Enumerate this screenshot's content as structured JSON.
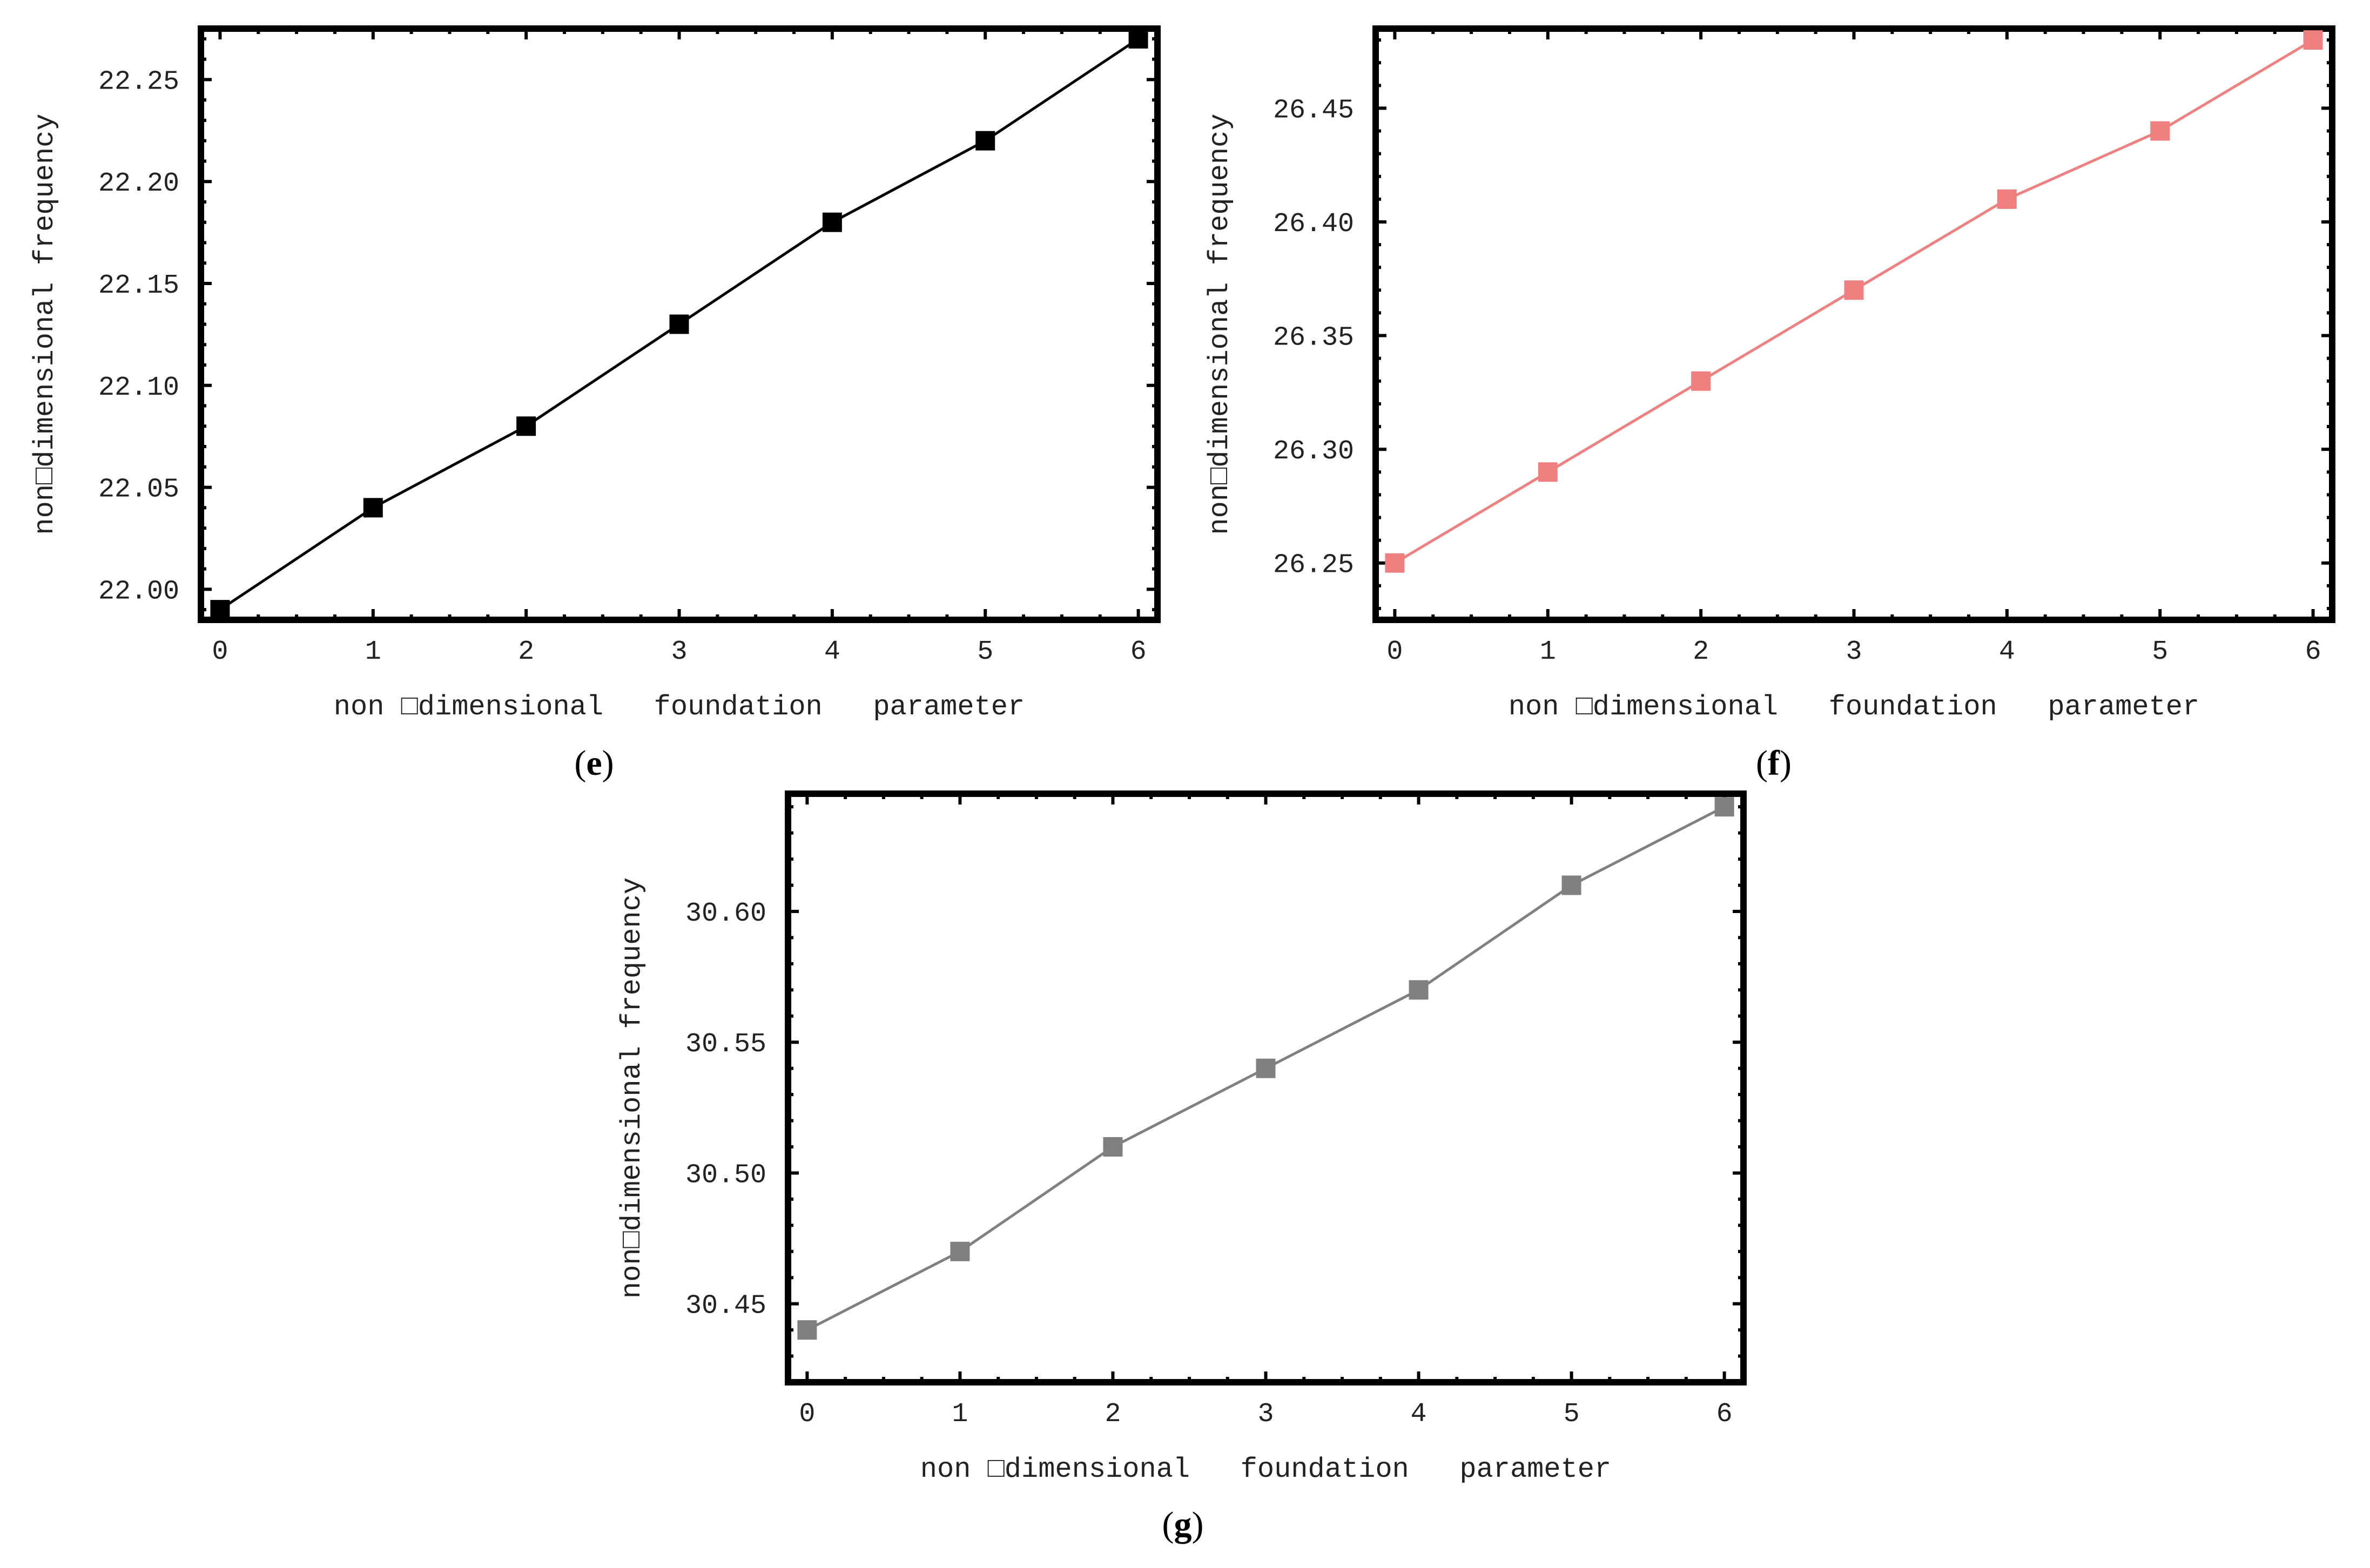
{
  "chart_data": [
    {
      "type": "line",
      "panel": "e",
      "color": "#000000",
      "xlabel": "non □dimensional   foundation   parameter",
      "ylabel": "non□dimensional frequency",
      "xlim": [
        0,
        6
      ],
      "ylim": [
        21.985,
        22.275
      ],
      "x_ticks": [
        "0",
        "1",
        "2",
        "3",
        "4",
        "5",
        "6"
      ],
      "y_ticks": [
        "22.00",
        "22.05",
        "22.10",
        "22.15",
        "22.20",
        "22.25"
      ],
      "x": [
        0,
        1,
        2,
        3,
        4,
        5,
        6
      ],
      "values": [
        21.99,
        22.04,
        22.08,
        22.13,
        22.18,
        22.22,
        22.27
      ],
      "marker": "square",
      "grid": false,
      "legend": false
    },
    {
      "type": "line",
      "panel": "f",
      "color": "#f08080",
      "xlabel": "non □dimensional   foundation   parameter",
      "ylabel": "non□dimensional frequency",
      "xlim": [
        0,
        6
      ],
      "ylim": [
        26.225,
        26.485
      ],
      "x_ticks": [
        "0",
        "1",
        "2",
        "3",
        "4",
        "5",
        "6"
      ],
      "y_ticks": [
        "26.25",
        "26.30",
        "26.35",
        "26.40",
        "26.45"
      ],
      "x": [
        0,
        1,
        2,
        3,
        4,
        5,
        6
      ],
      "values": [
        26.25,
        26.29,
        26.33,
        26.37,
        26.41,
        26.44,
        26.48
      ],
      "marker": "square",
      "grid": false,
      "legend": false
    },
    {
      "type": "line",
      "panel": "g",
      "color": "#808080",
      "xlabel": "non □dimensional   foundation   parameter",
      "ylabel": "non□dimensional frequency",
      "xlim": [
        0,
        6
      ],
      "ylim": [
        30.42,
        30.645
      ],
      "x_ticks": [
        "0",
        "1",
        "2",
        "3",
        "4",
        "5",
        "6"
      ],
      "y_ticks": [
        "30.45",
        "30.50",
        "30.55",
        "30.60"
      ],
      "x": [
        0,
        1,
        2,
        3,
        4,
        5,
        6
      ],
      "values": [
        30.44,
        30.47,
        30.51,
        30.54,
        30.57,
        30.61,
        30.64
      ],
      "marker": "square",
      "grid": false,
      "legend": false
    }
  ],
  "panel_labels": [
    {
      "open": "(",
      "letter": "e",
      "close": ")"
    },
    {
      "open": "(",
      "letter": "f",
      "close": ")"
    },
    {
      "open": "(",
      "letter": "g",
      "close": ")"
    }
  ]
}
